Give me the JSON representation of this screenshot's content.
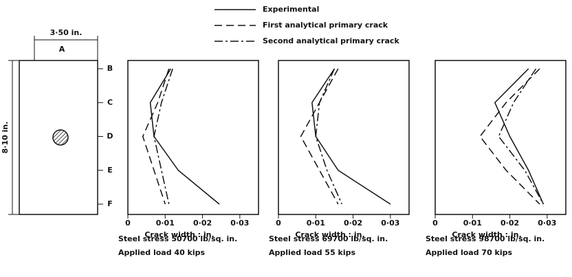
{
  "diagram": {
    "width_label": "3·50 in.",
    "top_label": "A",
    "height_label": "8·10 in."
  },
  "chart_data": [
    {
      "type": "line",
      "orientation": "horizontal",
      "categories": [
        "B",
        "C",
        "D",
        "E",
        "F"
      ],
      "xlabel": "Crack width : in.",
      "xlim": [
        0,
        0.035
      ],
      "xticks": [
        0,
        {
          "value": 0.01,
          "label": "0·01"
        },
        {
          "value": 0.02,
          "label": "0·02"
        },
        {
          "value": 0.03,
          "label": "0·03"
        }
      ],
      "caption": [
        "Steel stress 50700 lb/sq. in.",
        "Applied load 40 kips"
      ],
      "series": [
        {
          "name": "Experimental",
          "color": "#111111",
          "dash": "solid",
          "values": [
            0.0115,
            0.006,
            0.007,
            0.0135,
            0.0245
          ]
        },
        {
          "name": "First analytical primary crack",
          "color": "#111111",
          "dash": "dashed",
          "values": [
            0.011,
            0.008,
            0.004,
            0.007,
            0.01
          ]
        },
        {
          "name": "Second analytical primary crack",
          "color": "#111111",
          "dash": "dashdot",
          "values": [
            0.012,
            0.009,
            0.007,
            0.009,
            0.011
          ]
        }
      ]
    },
    {
      "type": "line",
      "orientation": "horizontal",
      "xlabel": "Crack width : in.",
      "xlim": [
        0,
        0.035
      ],
      "xticks": [
        0,
        {
          "value": 0.01,
          "label": "0·01"
        },
        {
          "value": 0.02,
          "label": "0·02"
        },
        {
          "value": 0.03,
          "label": "0·03"
        }
      ],
      "caption": [
        "Steel stress 69700 lb/sq. in.",
        "Applied load 55 kips"
      ],
      "series": [
        {
          "color": "#111111",
          "dash": "solid",
          "values": [
            0.015,
            0.009,
            0.01,
            0.016,
            0.03
          ]
        },
        {
          "color": "#111111",
          "dash": "dashed",
          "values": [
            0.016,
            0.011,
            0.006,
            0.011,
            0.016
          ]
        },
        {
          "color": "#111111",
          "dash": "dashdot",
          "values": [
            0.015,
            0.011,
            0.01,
            0.013,
            0.017
          ]
        }
      ]
    },
    {
      "type": "line",
      "orientation": "horizontal",
      "xlabel": "Crack width : in.",
      "xlim": [
        0,
        0.035
      ],
      "xticks": [
        0,
        {
          "value": 0.01,
          "label": "0·01"
        },
        {
          "value": 0.02,
          "label": "0·02"
        },
        {
          "value": 0.03,
          "label": "0·03"
        }
      ],
      "caption": [
        "Steel stress 98700 lb/sq. in.",
        "Applied load 70 kips"
      ],
      "series": [
        {
          "color": "#111111",
          "dash": "solid",
          "values": [
            0.025,
            0.016,
            0.02,
            0.025,
            0.029
          ]
        },
        {
          "color": "#111111",
          "dash": "dashed",
          "values": [
            0.028,
            0.019,
            0.012,
            0.019,
            0.028
          ]
        },
        {
          "color": "#111111",
          "dash": "dashdot",
          "values": [
            0.027,
            0.021,
            0.017,
            0.024,
            0.029
          ]
        }
      ]
    }
  ]
}
